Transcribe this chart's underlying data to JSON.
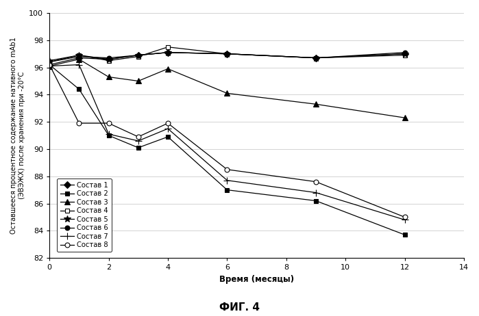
{
  "title": "ФИГ. 4",
  "xlabel": "Время (месяцы)",
  "ylabel": "Оставшееся процентное содержание нативного mAb1\n(ЭВЭЖХ) после хранения при -20°С",
  "xlim": [
    0,
    14
  ],
  "ylim": [
    82,
    100
  ],
  "xticks": [
    0,
    2,
    4,
    6,
    8,
    10,
    12,
    14
  ],
  "yticks": [
    82,
    84,
    86,
    88,
    90,
    92,
    94,
    96,
    98,
    100
  ],
  "series": [
    {
      "label": "Состав 1",
      "x": [
        0,
        1,
        2,
        3,
        4,
        6,
        9,
        12
      ],
      "y": [
        96.2,
        96.7,
        96.6,
        96.9,
        97.1,
        97.0,
        96.7,
        97.0
      ],
      "marker": "D",
      "markersize": 5,
      "mfc": "black",
      "mec": "black",
      "linestyle": "-"
    },
    {
      "label": "Состав 2",
      "x": [
        0,
        1,
        2,
        3,
        4,
        6,
        9,
        12
      ],
      "y": [
        96.2,
        94.4,
        91.0,
        90.1,
        90.9,
        87.0,
        86.2,
        83.7
      ],
      "marker": "s",
      "markersize": 5,
      "mfc": "black",
      "mec": "black",
      "linestyle": "-"
    },
    {
      "label": "Состав 3",
      "x": [
        0,
        1,
        2,
        3,
        4,
        6,
        9,
        12
      ],
      "y": [
        96.1,
        96.6,
        95.3,
        95.0,
        95.9,
        94.1,
        93.3,
        92.3
      ],
      "marker": "^",
      "markersize": 6,
      "mfc": "black",
      "mec": "black",
      "linestyle": "-"
    },
    {
      "label": "Состав 4",
      "x": [
        0,
        1,
        2,
        3,
        4,
        6,
        9,
        12
      ],
      "y": [
        96.4,
        96.9,
        96.5,
        96.8,
        97.5,
        97.0,
        96.7,
        96.9
      ],
      "marker": "s",
      "markersize": 5,
      "mfc": "white",
      "mec": "black",
      "linestyle": "-"
    },
    {
      "label": "Состав 5",
      "x": [
        0,
        1,
        2,
        3,
        4,
        6,
        9,
        12
      ],
      "y": [
        96.5,
        96.9,
        96.6,
        96.9,
        97.1,
        97.0,
        96.7,
        97.0
      ],
      "marker": "*",
      "markersize": 7,
      "mfc": "black",
      "mec": "black",
      "linestyle": "-"
    },
    {
      "label": "Состав 6",
      "x": [
        0,
        1,
        2,
        3,
        4,
        6,
        9,
        12
      ],
      "y": [
        96.4,
        96.8,
        96.7,
        96.9,
        97.1,
        97.0,
        96.7,
        97.1
      ],
      "marker": "o",
      "markersize": 5,
      "mfc": "black",
      "mec": "black",
      "linestyle": "-"
    },
    {
      "label": "Состав 7",
      "x": [
        0,
        1,
        2,
        3,
        4,
        6,
        9,
        12
      ],
      "y": [
        96.1,
        96.2,
        91.1,
        90.6,
        91.5,
        87.7,
        86.8,
        84.8
      ],
      "marker": "+",
      "markersize": 7,
      "mfc": "black",
      "mec": "black",
      "linestyle": "-"
    },
    {
      "label": "Состав 8",
      "x": [
        0,
        1,
        2,
        3,
        4,
        6,
        9,
        12
      ],
      "y": [
        96.2,
        91.9,
        91.9,
        90.9,
        91.9,
        88.5,
        87.6,
        85.0
      ],
      "marker": "o",
      "markersize": 5,
      "mfc": "white",
      "mec": "black",
      "linestyle": "-"
    }
  ],
  "background_color": "#ffffff",
  "figsize": [
    6.99,
    4.62
  ],
  "dpi": 100
}
